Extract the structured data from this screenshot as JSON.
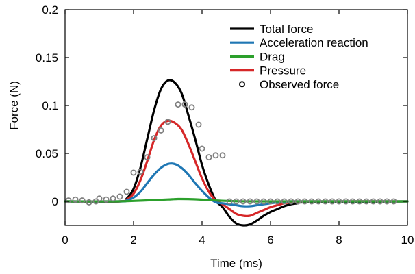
{
  "chart_data": {
    "type": "line",
    "title": "",
    "xlabel": "Time (ms)",
    "ylabel": "Force (N)",
    "xlim": [
      0,
      10
    ],
    "ylim": [
      -0.025,
      0.2
    ],
    "xticks": [
      0,
      2,
      4,
      6,
      8,
      10
    ],
    "xtick_labels": [
      "0",
      "2",
      "4",
      "6",
      "8",
      "10"
    ],
    "yticks": [
      0,
      0.05,
      0.1,
      0.15,
      0.2
    ],
    "ytick_labels": [
      "0",
      "0.05",
      "0.1",
      "0.15",
      "0.2"
    ],
    "grid": false,
    "legend_position": "top-right",
    "colors": {
      "total": "#000000",
      "acceleration": "#1f77b4",
      "drag": "#2ca02c",
      "pressure": "#d62728",
      "observed": "#808080"
    },
    "series": [
      {
        "name": "Total force",
        "key": "total",
        "x": [
          0,
          1.6,
          1.8,
          2.0,
          2.2,
          2.4,
          2.6,
          2.8,
          3.0,
          3.2,
          3.4,
          3.6,
          3.8,
          4.0,
          4.2,
          4.4,
          4.6,
          4.8,
          5.0,
          5.2,
          5.4,
          5.6,
          5.8,
          6.0,
          6.2,
          6.4,
          6.6,
          6.8,
          7.0,
          10
        ],
        "y": [
          0,
          0,
          0.003,
          0.013,
          0.035,
          0.065,
          0.095,
          0.117,
          0.126,
          0.124,
          0.113,
          0.09,
          0.065,
          0.038,
          0.017,
          0.001,
          -0.006,
          -0.016,
          -0.023,
          -0.025,
          -0.024,
          -0.02,
          -0.015,
          -0.011,
          -0.008,
          -0.005,
          -0.003,
          -0.002,
          -0.001,
          0
        ]
      },
      {
        "name": "Acceleration reaction",
        "key": "acceleration",
        "x": [
          0,
          1.6,
          1.8,
          2.0,
          2.2,
          2.4,
          2.6,
          2.8,
          3.0,
          3.2,
          3.4,
          3.6,
          3.8,
          4.0,
          4.2,
          4.4,
          4.6,
          4.8,
          5.0,
          5.2,
          5.4,
          5.6,
          5.8,
          6.0,
          6.2,
          6.4,
          6.6,
          7.0,
          10
        ],
        "y": [
          0,
          0,
          0.001,
          0.004,
          0.01,
          0.019,
          0.028,
          0.035,
          0.039,
          0.039,
          0.035,
          0.028,
          0.019,
          0.011,
          0.004,
          -0.001,
          -0.002,
          -0.003,
          -0.004,
          -0.005,
          -0.005,
          -0.004,
          -0.003,
          -0.002,
          -0.001,
          -0.0005,
          0,
          0,
          0
        ]
      },
      {
        "name": "Drag",
        "key": "drag",
        "x": [
          0,
          1.5,
          2.0,
          2.5,
          3.0,
          3.3,
          3.6,
          4.0,
          4.5,
          5.0,
          6.0,
          10
        ],
        "y": [
          0,
          0,
          0.0005,
          0.0012,
          0.002,
          0.0025,
          0.0024,
          0.0018,
          0.0008,
          0.0002,
          0,
          0
        ]
      },
      {
        "name": "Pressure",
        "key": "pressure",
        "x": [
          0,
          1.6,
          1.8,
          2.0,
          2.2,
          2.4,
          2.6,
          2.8,
          3.0,
          3.2,
          3.4,
          3.6,
          3.8,
          4.0,
          4.2,
          4.4,
          4.6,
          4.8,
          5.0,
          5.2,
          5.4,
          5.6,
          5.8,
          6.0,
          6.2,
          6.4,
          6.6,
          7.0,
          10
        ],
        "y": [
          0,
          0,
          0.002,
          0.008,
          0.022,
          0.042,
          0.064,
          0.079,
          0.084,
          0.082,
          0.075,
          0.06,
          0.042,
          0.024,
          0.01,
          0.001,
          -0.003,
          -0.008,
          -0.013,
          -0.015,
          -0.015,
          -0.012,
          -0.009,
          -0.006,
          -0.004,
          -0.002,
          -0.001,
          0,
          0
        ]
      }
    ],
    "observed": {
      "name": "Observed force",
      "key": "observed",
      "x": [
        0.1,
        0.3,
        0.5,
        0.7,
        0.9,
        1.0,
        1.2,
        1.4,
        1.6,
        1.8,
        2.0,
        2.2,
        2.4,
        2.6,
        2.8,
        3.0,
        3.3,
        3.5,
        3.7,
        3.9,
        4.0,
        4.2,
        4.4,
        4.6,
        4.8,
        5.0,
        5.2,
        5.4,
        5.6,
        5.8,
        6.0,
        6.2,
        6.4,
        6.6,
        6.8,
        7.0,
        7.2,
        7.4,
        7.6,
        7.8,
        8.0,
        8.2,
        8.4,
        8.6,
        8.8,
        9.0,
        9.2,
        9.4,
        9.6
      ],
      "y": [
        0.001,
        0.002,
        0.001,
        -0.001,
        0.0,
        0.003,
        0.002,
        0.003,
        0.005,
        0.01,
        0.03,
        0.031,
        0.046,
        0.066,
        0.074,
        0.083,
        0.101,
        0.101,
        0.098,
        0.08,
        0.055,
        0.046,
        0.048,
        0.048,
        0.0,
        0.0,
        0.0,
        0.0,
        0.0,
        0.0,
        0.0,
        0.0,
        0.0,
        0.0,
        0.0,
        0.0,
        0.0,
        0.0,
        0.0,
        0.0,
        0.0,
        0.0,
        0.0,
        0.0,
        0.0,
        0.0,
        0.0,
        0.0,
        0.0
      ]
    }
  }
}
